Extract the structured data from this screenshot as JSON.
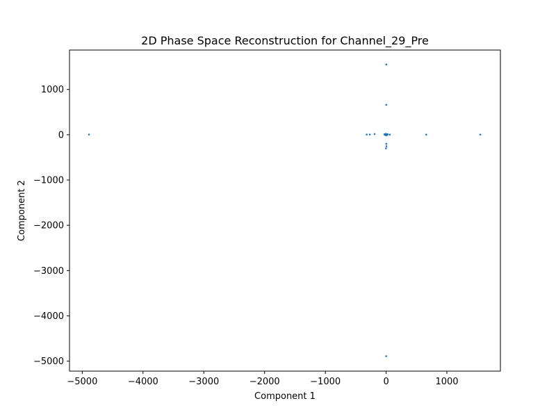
{
  "chart_data": {
    "type": "scatter",
    "title": "2D Phase Space Reconstruction for Channel_29_Pre",
    "xlabel": "Component 1",
    "ylabel": "Component 2",
    "xlim": [
      -5210,
      1880
    ],
    "ylim": [
      -5220,
      1870
    ],
    "x_ticks": [
      -5000,
      -4000,
      -3000,
      -2000,
      -1000,
      0,
      1000
    ],
    "y_ticks": [
      1000,
      0,
      -1000,
      -2000,
      -3000,
      -4000,
      -5000
    ],
    "x_tick_labels": [
      "−5000",
      "−4000",
      "−3000",
      "−2000",
      "−1000",
      "0",
      "1000"
    ],
    "y_tick_labels": [
      "1000",
      "0",
      "−1000",
      "−2000",
      "−3000",
      "−4000",
      "−5000"
    ],
    "grid": false,
    "marker_color": "#1f77b4",
    "points": [
      {
        "x": -4890,
        "y": 5
      },
      {
        "x": -320,
        "y": 5
      },
      {
        "x": -270,
        "y": 5
      },
      {
        "x": -190,
        "y": 15
      },
      {
        "x": -30,
        "y": 8
      },
      {
        "x": -15,
        "y": -5
      },
      {
        "x": -8,
        "y": 20
      },
      {
        "x": 0,
        "y": 0
      },
      {
        "x": 5,
        "y": -15
      },
      {
        "x": 10,
        "y": 10
      },
      {
        "x": 15,
        "y": -2
      },
      {
        "x": 25,
        "y": 12
      },
      {
        "x": 60,
        "y": 3
      },
      {
        "x": 660,
        "y": 3
      },
      {
        "x": 1550,
        "y": 3
      },
      {
        "x": 2,
        "y": 1550
      },
      {
        "x": 2,
        "y": 660
      },
      {
        "x": 2,
        "y": -200
      },
      {
        "x": 5,
        "y": -255
      },
      {
        "x": -2,
        "y": -300
      },
      {
        "x": 0,
        "y": -4890
      }
    ]
  }
}
